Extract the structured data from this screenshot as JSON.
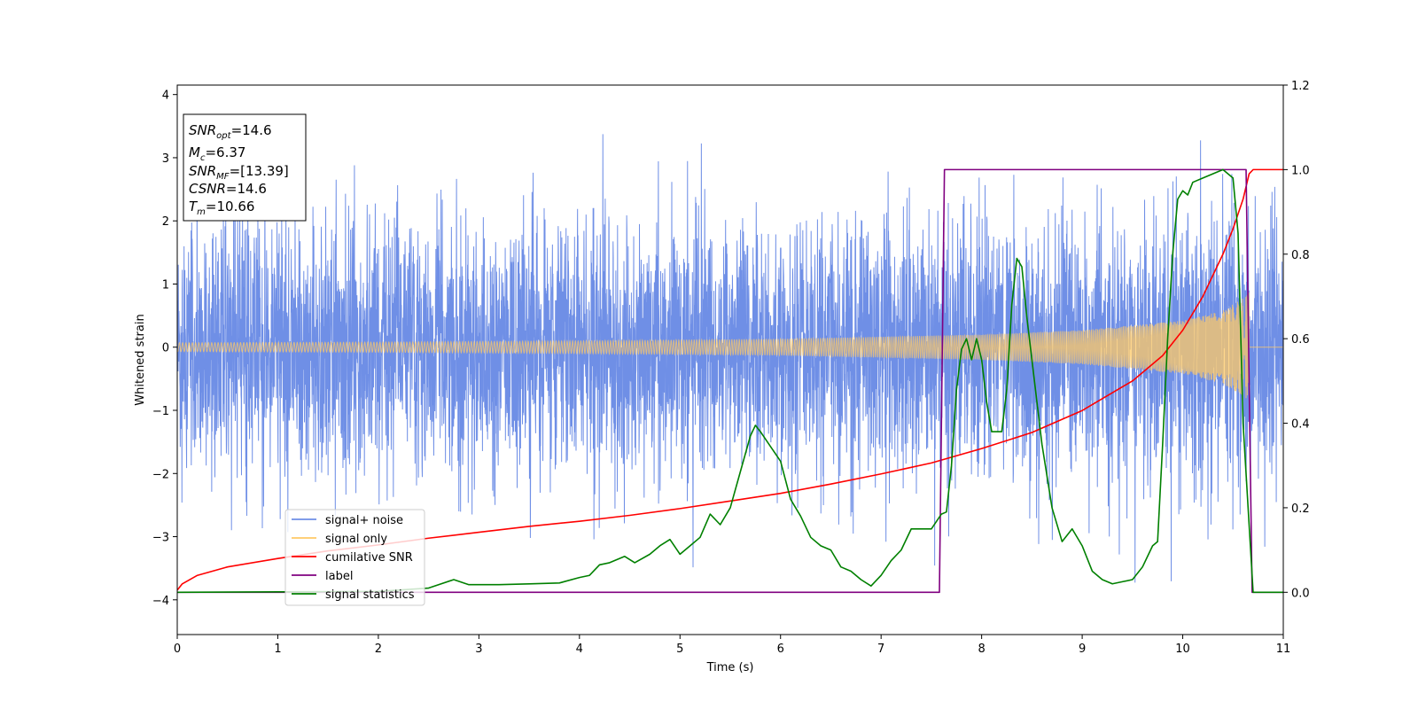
{
  "chart_data": {
    "type": "line",
    "title": "",
    "xlabel": "Time (s)",
    "ylabel": "Whitened strain",
    "xlim": [
      0,
      11
    ],
    "ylim": [
      -4.55,
      4.15
    ],
    "y2lim": [
      -0.1,
      1.2
    ],
    "xticks": [
      0,
      1,
      2,
      3,
      4,
      5,
      6,
      7,
      8,
      9,
      10,
      11
    ],
    "yticks": [
      -4,
      -3,
      -2,
      -1,
      0,
      1,
      2,
      3,
      4
    ],
    "y2ticks": [
      0.0,
      0.2,
      0.4,
      0.6,
      0.8,
      1.0,
      1.2
    ],
    "xtick_labels": [
      "0",
      "1",
      "2",
      "3",
      "4",
      "5",
      "6",
      "7",
      "8",
      "9",
      "10",
      "11"
    ],
    "ytick_labels": [
      "−4",
      "−3",
      "−2",
      "−1",
      "0",
      "1",
      "2",
      "3",
      "4"
    ],
    "y2tick_labels": [
      "0.0",
      "0.2",
      "0.4",
      "0.6",
      "0.8",
      "1.0",
      "1.2"
    ],
    "grid": false,
    "legend_position": "lower-left",
    "series": [
      {
        "name": "signal+ noise",
        "axis": "left",
        "color": "#6f8fe6",
        "description_type": "noise",
        "envelope": {
          "t": [
            0,
            11
          ],
          "sigma": 1.0
        }
      },
      {
        "name": "signal only",
        "axis": "left",
        "color": "#ffc966",
        "description_type": "chirp",
        "amplitude_points": {
          "t": [
            0,
            2,
            4,
            6,
            8,
            9,
            10,
            10.4,
            10.6,
            10.66
          ],
          "a": [
            0.07,
            0.08,
            0.1,
            0.13,
            0.2,
            0.27,
            0.42,
            0.58,
            0.78,
            0.88
          ]
        },
        "merger_time": 10.66
      },
      {
        "name": "cumilative SNR",
        "axis": "right",
        "color": "#ff0000",
        "x": [
          0,
          0.05,
          0.2,
          0.5,
          1,
          1.5,
          2,
          2.5,
          3,
          3.5,
          4,
          4.5,
          5,
          5.5,
          6,
          6.5,
          7,
          7.5,
          8,
          8.5,
          9,
          9.5,
          9.8,
          10,
          10.2,
          10.4,
          10.5,
          10.6,
          10.66,
          10.7,
          11
        ],
        "y": [
          0.005,
          0.02,
          0.04,
          0.06,
          0.08,
          0.098,
          0.112,
          0.128,
          0.142,
          0.156,
          0.168,
          0.182,
          0.198,
          0.216,
          0.234,
          0.256,
          0.28,
          0.306,
          0.34,
          0.378,
          0.43,
          0.5,
          0.56,
          0.62,
          0.7,
          0.8,
          0.86,
          0.93,
          0.99,
          1.0,
          1.0
        ]
      },
      {
        "name": "label",
        "axis": "right",
        "color": "#800080",
        "x": [
          0,
          7.58,
          7.63,
          10.63,
          10.69,
          11
        ],
        "y": [
          0,
          0,
          1,
          1,
          0,
          0
        ]
      },
      {
        "name": "signal statistics",
        "axis": "right",
        "color": "#008000",
        "x": [
          0,
          1,
          2,
          2.5,
          2.75,
          2.9,
          3.2,
          3.5,
          3.8,
          4.0,
          4.1,
          4.2,
          4.3,
          4.45,
          4.55,
          4.7,
          4.8,
          4.9,
          5.0,
          5.1,
          5.2,
          5.3,
          5.4,
          5.5,
          5.6,
          5.7,
          5.75,
          5.8,
          5.9,
          6.0,
          6.1,
          6.2,
          6.3,
          6.4,
          6.5,
          6.6,
          6.7,
          6.8,
          6.9,
          7.0,
          7.1,
          7.2,
          7.3,
          7.4,
          7.5,
          7.6,
          7.65,
          7.7,
          7.75,
          7.8,
          7.85,
          7.9,
          7.95,
          8.0,
          8.05,
          8.1,
          8.2,
          8.25,
          8.3,
          8.35,
          8.4,
          8.45,
          8.5,
          8.6,
          8.7,
          8.8,
          8.9,
          9.0,
          9.1,
          9.2,
          9.3,
          9.4,
          9.5,
          9.6,
          9.7,
          9.75,
          9.8,
          9.85,
          9.9,
          9.95,
          10.0,
          10.05,
          10.1,
          10.2,
          10.3,
          10.4,
          10.5,
          10.55,
          10.6,
          10.7,
          10.8,
          11
        ],
        "y": [
          0.0,
          0.001,
          0.002,
          0.01,
          0.03,
          0.018,
          0.018,
          0.02,
          0.022,
          0.035,
          0.04,
          0.065,
          0.07,
          0.085,
          0.07,
          0.09,
          0.11,
          0.125,
          0.09,
          0.11,
          0.13,
          0.185,
          0.16,
          0.2,
          0.285,
          0.37,
          0.395,
          0.38,
          0.345,
          0.31,
          0.22,
          0.18,
          0.13,
          0.11,
          0.1,
          0.06,
          0.05,
          0.03,
          0.015,
          0.04,
          0.075,
          0.1,
          0.15,
          0.15,
          0.15,
          0.185,
          0.19,
          0.3,
          0.48,
          0.575,
          0.6,
          0.55,
          0.6,
          0.55,
          0.45,
          0.38,
          0.38,
          0.48,
          0.68,
          0.79,
          0.77,
          0.65,
          0.55,
          0.35,
          0.2,
          0.12,
          0.15,
          0.11,
          0.05,
          0.03,
          0.02,
          0.025,
          0.03,
          0.06,
          0.11,
          0.12,
          0.35,
          0.6,
          0.8,
          0.93,
          0.95,
          0.94,
          0.97,
          0.98,
          0.99,
          1.0,
          0.98,
          0.85,
          0.4,
          0.0,
          0.0,
          0.0
        ]
      }
    ],
    "info_box": {
      "lines": [
        {
          "main": "SNR",
          "sub": "opt",
          "value": "=14.6"
        },
        {
          "main": "M",
          "sub": "c",
          "value": "=6.37"
        },
        {
          "main": "SNR",
          "sub": "MF",
          "value": "=[13.39]"
        },
        {
          "main": "CSNR",
          "sub": "",
          "value": "=14.6"
        },
        {
          "main": "T",
          "sub": "m",
          "value": "=10.66"
        }
      ]
    }
  }
}
